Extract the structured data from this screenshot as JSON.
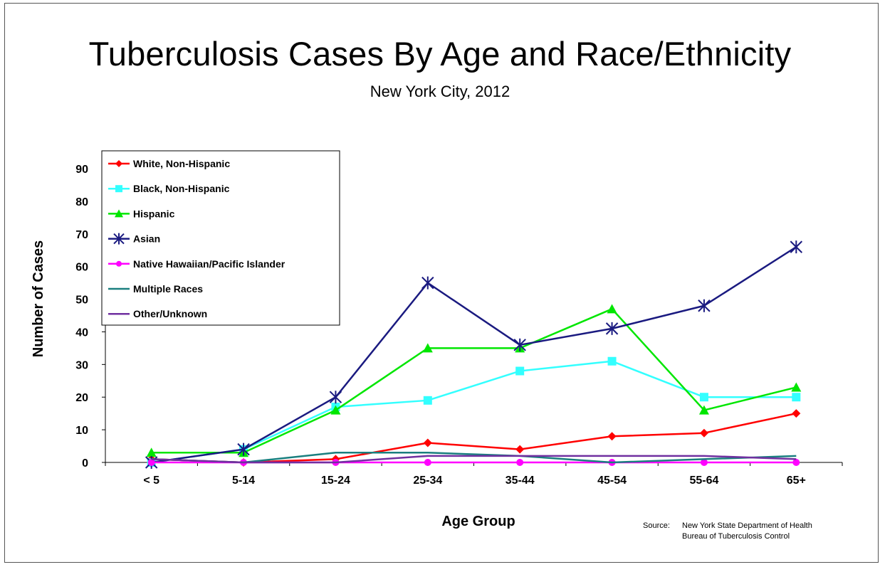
{
  "chart_data": {
    "type": "line",
    "title": "Tuberculosis Cases By Age and Race/Ethnicity",
    "subtitle": "New York City, 2012",
    "xlabel": "Age Group",
    "ylabel": "Number of Cases",
    "categories": [
      "< 5",
      "5-14",
      "15-24",
      "25-34",
      "35-44",
      "45-54",
      "55-64",
      "65+"
    ],
    "ylim": [
      0,
      90
    ],
    "yticks": [
      0,
      10,
      20,
      30,
      40,
      50,
      60,
      70,
      80,
      90
    ],
    "grid": false,
    "legend_position": "top-left",
    "series": [
      {
        "name": "White, Non-Hispanic",
        "color": "#ff0000",
        "marker": "diamond",
        "values": [
          1,
          0,
          1,
          6,
          4,
          8,
          9,
          15
        ]
      },
      {
        "name": "Black, Non-Hispanic",
        "color": "#33ffff",
        "marker": "square",
        "values": [
          0,
          4,
          17,
          19,
          28,
          31,
          20,
          20
        ]
      },
      {
        "name": "Hispanic",
        "color": "#00e600",
        "marker": "triangle",
        "values": [
          3,
          3,
          16,
          35,
          35,
          47,
          16,
          23
        ]
      },
      {
        "name": "Asian",
        "color": "#1a1a80",
        "marker": "star",
        "values": [
          0,
          4,
          20,
          55,
          36,
          41,
          48,
          66
        ]
      },
      {
        "name": "Native Hawaiian/Pacific Islander",
        "color": "#ff00ff",
        "marker": "circle",
        "values": [
          0,
          0,
          0,
          0,
          0,
          0,
          0,
          0
        ]
      },
      {
        "name": "Multiple Races",
        "color": "#1a7f7f",
        "marker": "none",
        "values": [
          1,
          0,
          3,
          3,
          2,
          0,
          1,
          2
        ]
      },
      {
        "name": "Other/Unknown",
        "color": "#7030a0",
        "marker": "none",
        "values": [
          1,
          0,
          0,
          2,
          2,
          2,
          2,
          1
        ]
      }
    ]
  },
  "source": {
    "label": "Source:",
    "line1": "New York State Department of Health",
    "line2": "Bureau of Tuberculosis Control"
  }
}
